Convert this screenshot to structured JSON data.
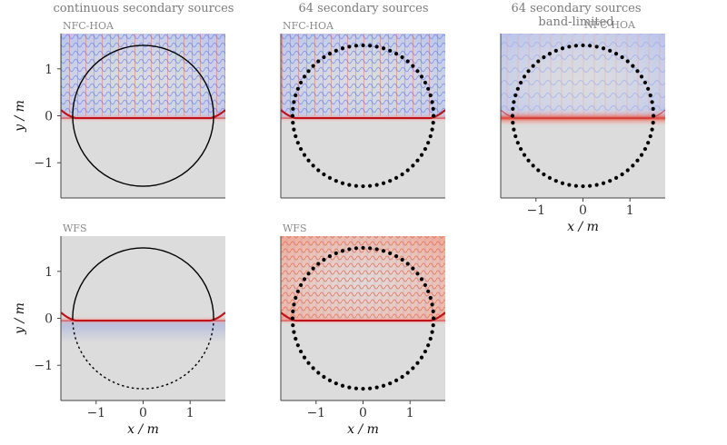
{
  "figure": {
    "columns": [
      {
        "title_lines": [
          "continuous secondary sources"
        ]
      },
      {
        "title_lines": [
          "64 secondary sources"
        ]
      },
      {
        "title_lines": [
          "64 secondary sources",
          "band-limited"
        ]
      }
    ]
  },
  "chart_data": [
    {
      "type": "heatmap",
      "id": "nfc-hoa-continuous",
      "method_label": "NFC-HOA",
      "xlim": [
        -1.75,
        1.75
      ],
      "ylim": [
        -1.75,
        1.75
      ],
      "xticks": [
        -1,
        0,
        1
      ],
      "yticks": [
        -1,
        0,
        1
      ],
      "xlabel": "",
      "ylabel": "y / m",
      "secondary_sources": {
        "style": "continuous",
        "radius": 1.5,
        "count": 0
      },
      "wavefront_y": -0.05,
      "colors": {
        "positive": "#c0101a",
        "negative": "#3a55d0",
        "background": "#dcdcdc"
      }
    },
    {
      "type": "heatmap",
      "id": "nfc-hoa-64",
      "method_label": "NFC-HOA",
      "xlim": [
        -1.75,
        1.75
      ],
      "ylim": [
        -1.75,
        1.75
      ],
      "xticks": [
        -1,
        0,
        1
      ],
      "yticks": [
        -1,
        0,
        1
      ],
      "xlabel": "",
      "ylabel": "",
      "secondary_sources": {
        "style": "discrete",
        "radius": 1.5,
        "count": 64
      },
      "wavefront_y": -0.05,
      "colors": {
        "positive": "#c0101a",
        "negative": "#3a55d0",
        "background": "#dcdcdc"
      }
    },
    {
      "type": "heatmap",
      "id": "nfc-hoa-64-bandlimited",
      "method_label": "NFC-HOA",
      "xlim": [
        -1.75,
        1.75
      ],
      "ylim": [
        -1.75,
        1.75
      ],
      "xticks": [
        -1,
        0,
        1
      ],
      "yticks": [
        -1,
        0,
        1
      ],
      "xlabel": "x / m",
      "ylabel": "",
      "secondary_sources": {
        "style": "discrete",
        "radius": 1.5,
        "count": 64
      },
      "wavefront_y": -0.05,
      "colors": {
        "positive": "#c0101a",
        "negative": "#3a55d0",
        "background": "#dcdcdc"
      }
    },
    {
      "type": "heatmap",
      "id": "wfs-continuous",
      "method_label": "WFS",
      "xlim": [
        -1.75,
        1.75
      ],
      "ylim": [
        -1.75,
        1.75
      ],
      "xticks": [
        -1,
        0,
        1
      ],
      "yticks": [
        -1,
        0,
        1
      ],
      "xlabel": "x / m",
      "ylabel": "y / m",
      "secondary_sources": {
        "style": "continuous-half",
        "radius": 1.5,
        "count": 0
      },
      "wavefront_y": -0.05,
      "colors": {
        "positive": "#c0101a",
        "negative": "#3a55d0",
        "background": "#dcdcdc"
      }
    },
    {
      "type": "heatmap",
      "id": "wfs-64",
      "method_label": "WFS",
      "xlim": [
        -1.75,
        1.75
      ],
      "ylim": [
        -1.75,
        1.75
      ],
      "xticks": [
        -1,
        0,
        1
      ],
      "yticks": [
        -1,
        0,
        1
      ],
      "xlabel": "x / m",
      "ylabel": "",
      "secondary_sources": {
        "style": "discrete",
        "radius": 1.5,
        "count": 64
      },
      "wavefront_y": -0.05,
      "colors": {
        "positive": "#c0101a",
        "negative": "#3a55d0",
        "background": "#dcdcdc"
      }
    }
  ]
}
